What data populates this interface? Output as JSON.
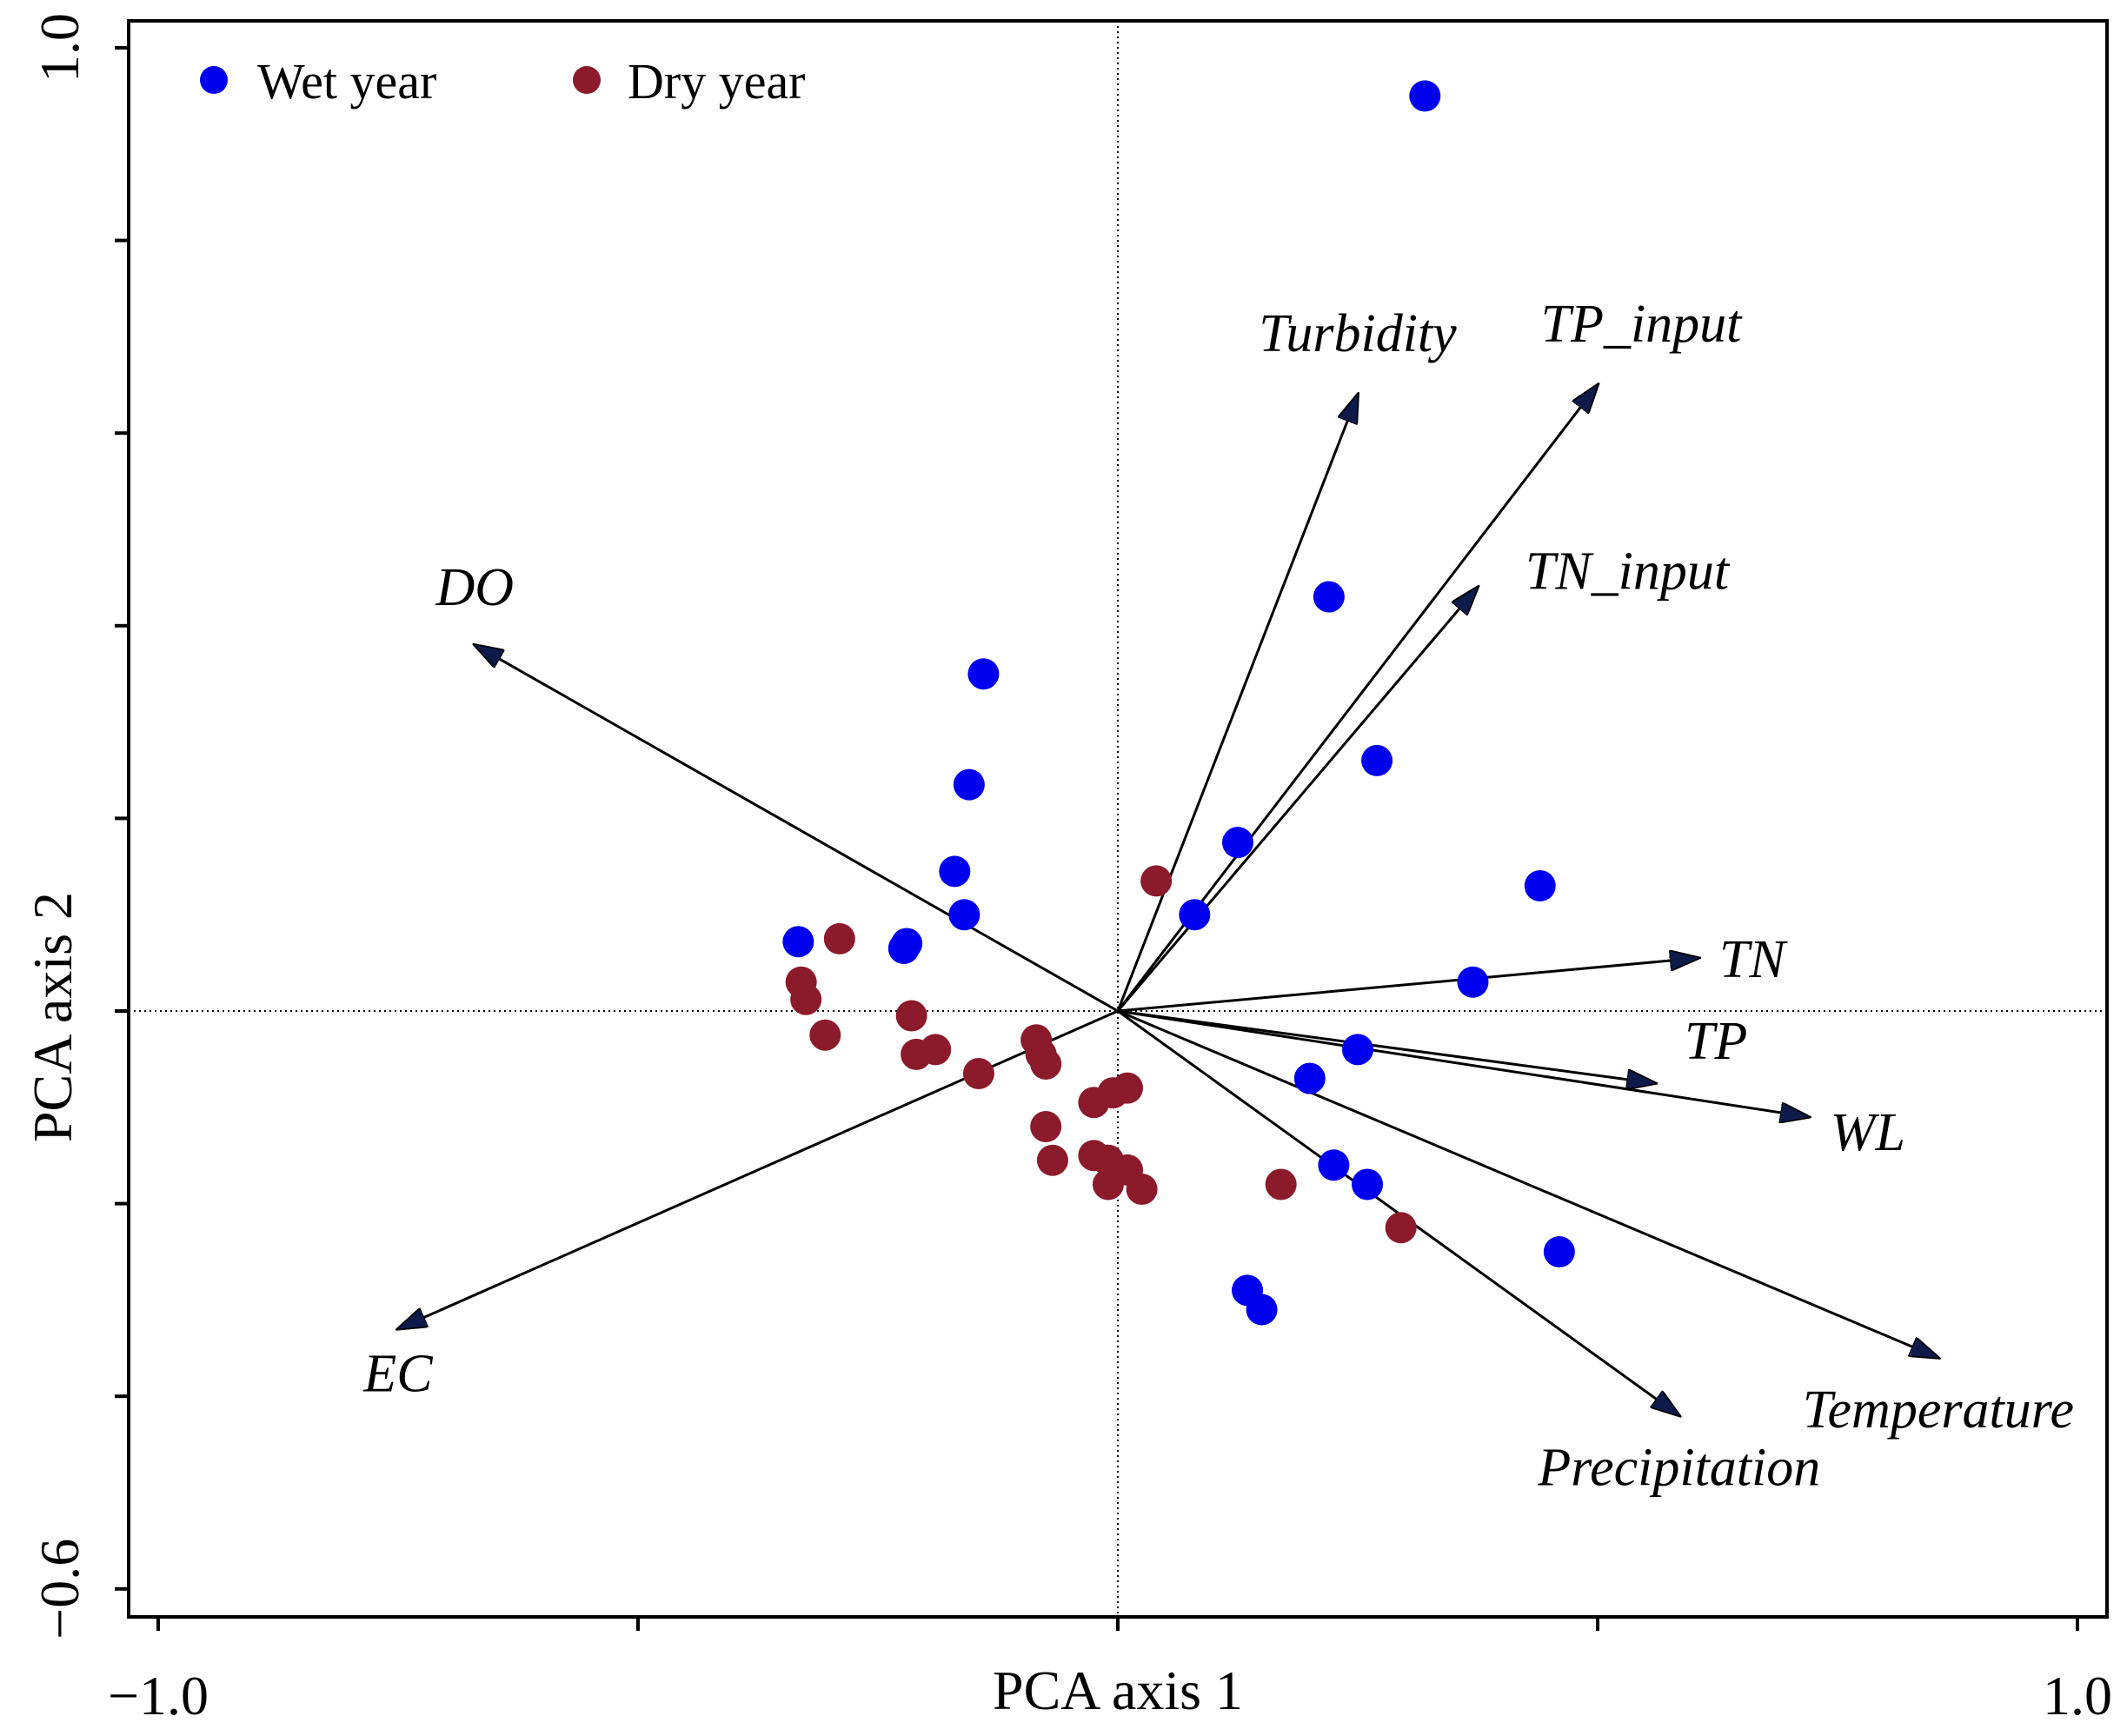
{
  "chart_data": {
    "type": "scatter",
    "subtype": "pca-biplot",
    "xlabel": "PCA axis 1",
    "ylabel": "PCA axis 2",
    "xlim": [
      -1.0,
      1.0
    ],
    "ylim": [
      -0.6,
      1.0
    ],
    "x_tick_labels": [
      {
        "value": -1.0,
        "label": "−1.0"
      },
      {
        "value": 1.0,
        "label": "1.0"
      }
    ],
    "y_tick_labels": [
      {
        "value": -0.6,
        "label": "−0.6"
      },
      {
        "value": 1.0,
        "label": "1.0"
      }
    ],
    "x_ticks": [
      -1.0,
      -0.5,
      0.0,
      0.5,
      1.0
    ],
    "y_ticks": [
      -0.6,
      -0.4,
      -0.2,
      0.0,
      0.2,
      0.4,
      0.6,
      0.8,
      1.0
    ],
    "legend": {
      "position": "top-left",
      "entries": [
        {
          "name": "Wet year",
          "color": "#0000ee"
        },
        {
          "name": "Dry year",
          "color": "#8b1a2b"
        }
      ]
    },
    "series": [
      {
        "name": "Wet year",
        "color": "#0000ee",
        "points": [
          [
            0.32,
            0.95
          ],
          [
            0.22,
            0.43
          ],
          [
            0.27,
            0.26
          ],
          [
            0.44,
            0.13
          ],
          [
            0.125,
            0.175
          ],
          [
            0.08,
            0.1
          ],
          [
            0.37,
            0.03
          ],
          [
            -0.14,
            0.35
          ],
          [
            -0.155,
            0.235
          ],
          [
            -0.17,
            0.145
          ],
          [
            -0.16,
            0.1
          ],
          [
            -0.22,
            0.07
          ],
          [
            -0.223,
            0.065
          ],
          [
            -0.333,
            0.072
          ],
          [
            0.25,
            -0.04
          ],
          [
            0.2,
            -0.07
          ],
          [
            0.225,
            -0.16
          ],
          [
            0.26,
            -0.18
          ],
          [
            0.46,
            -0.25
          ],
          [
            0.135,
            -0.29
          ],
          [
            0.15,
            -0.31
          ]
        ]
      },
      {
        "name": "Dry year",
        "color": "#8b1a2b",
        "points": [
          [
            0.04,
            0.135
          ],
          [
            -0.29,
            0.075
          ],
          [
            -0.33,
            0.03
          ],
          [
            -0.325,
            0.012
          ],
          [
            -0.305,
            -0.025
          ],
          [
            -0.215,
            -0.005
          ],
          [
            -0.21,
            -0.045
          ],
          [
            -0.19,
            -0.04
          ],
          [
            -0.085,
            -0.03
          ],
          [
            -0.08,
            -0.045
          ],
          [
            -0.145,
            -0.065
          ],
          [
            -0.075,
            -0.055
          ],
          [
            0.01,
            -0.08
          ],
          [
            -0.005,
            -0.085
          ],
          [
            -0.025,
            -0.095
          ],
          [
            -0.075,
            -0.12
          ],
          [
            -0.068,
            -0.155
          ],
          [
            -0.025,
            -0.15
          ],
          [
            -0.01,
            -0.155
          ],
          [
            0.01,
            -0.165
          ],
          [
            -0.01,
            -0.18
          ],
          [
            0.025,
            -0.185
          ],
          [
            0.17,
            -0.18
          ],
          [
            0.295,
            -0.225
          ]
        ]
      }
    ],
    "vectors": [
      {
        "name": "Turbidity",
        "x": 0.25,
        "y": 0.64
      },
      {
        "name": "TP_input",
        "x": 0.5,
        "y": 0.65
      },
      {
        "name": "TN_input",
        "x": 0.375,
        "y": 0.44
      },
      {
        "name": "DO",
        "x": -0.67,
        "y": 0.38
      },
      {
        "name": "TN",
        "x": 0.605,
        "y": 0.055
      },
      {
        "name": "TP",
        "x": 0.56,
        "y": -0.075
      },
      {
        "name": "WL",
        "x": 0.72,
        "y": -0.11
      },
      {
        "name": "Temperature",
        "x": 0.855,
        "y": -0.36
      },
      {
        "name": "Precipitation",
        "x": 0.585,
        "y": -0.42
      },
      {
        "name": "EC",
        "x": -0.75,
        "y": -0.33
      }
    ]
  }
}
